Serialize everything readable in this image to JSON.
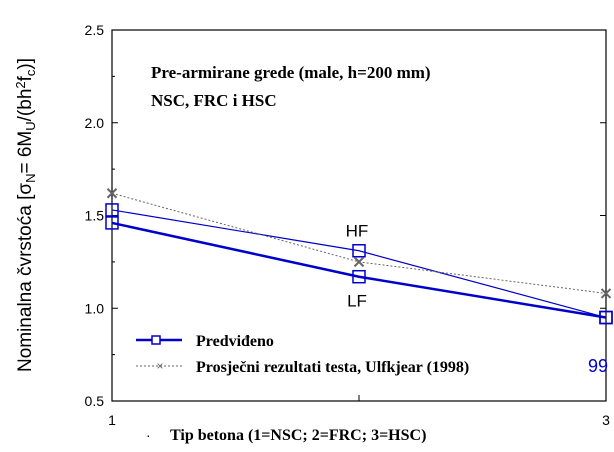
{
  "chart_data": {
    "type": "line",
    "title_lines": [
      "Pre-armirane grede (male,  h=200 mm)",
      "NSC, FRC i HSC"
    ],
    "ylabel": {
      "main": "Nominalna čvrstoća [σ",
      "sub1": "N",
      "mid": "= 6M",
      "sub2": "U",
      "rest": "/(bh",
      "sup": "2",
      "mid2": "f",
      "sub3": "c",
      "end": ")]"
    },
    "xlabel": "Tip betona (1=NSC; 2=FRC; 3=HSC)",
    "xlim": [
      1,
      3
    ],
    "ylim": [
      0.5,
      2.5
    ],
    "x_ticks": [
      "1",
      "3"
    ],
    "y_ticks": [
      "0.5",
      "1.0",
      "1.5",
      "2.0",
      "2.5"
    ],
    "series": [
      {
        "name": "Predviđeno",
        "color": "#0000cc",
        "marker": "square",
        "line": "thick",
        "x": [
          1,
          2,
          3
        ],
        "y": [
          1.46,
          1.17,
          0.95
        ]
      },
      {
        "name": "",
        "color": "#0000cc",
        "marker": "square",
        "line": "thin",
        "x": [
          1,
          2,
          3
        ],
        "y": [
          1.53,
          1.31,
          0.95
        ]
      },
      {
        "name": "Prosječni rezultati testa, Ulfkjear (1998)",
        "color": "#666666",
        "marker": "x",
        "line": "dotted",
        "x": [
          1,
          2,
          3
        ],
        "y": [
          1.62,
          1.25,
          1.08
        ]
      }
    ],
    "annotations": [
      {
        "text": "HF",
        "x": 2,
        "y": 1.31
      },
      {
        "text": "LF",
        "x": 2,
        "y": 1.17
      }
    ],
    "stray_text": "99",
    "stray_color": "#0000cc",
    "grid": false,
    "legend": "bottom-left"
  }
}
